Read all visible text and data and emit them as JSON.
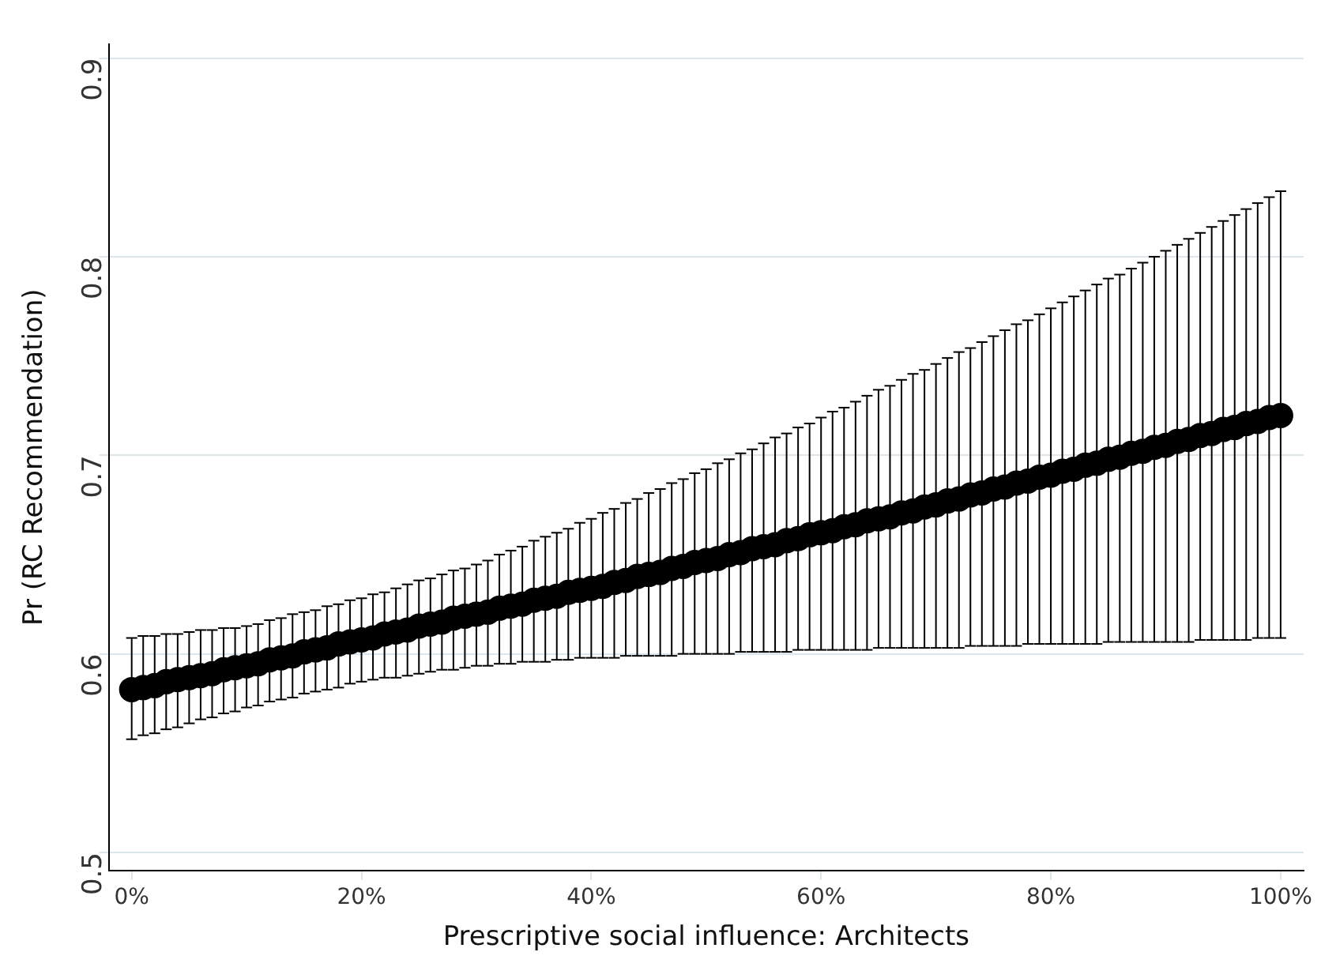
{
  "chart_data": {
    "type": "scatter",
    "xlabel": "Prescriptive social influence: Architects",
    "ylabel": "Pr (RC Recommendation)",
    "x": [
      0,
      1,
      2,
      3,
      4,
      5,
      6,
      7,
      8,
      9,
      10,
      11,
      12,
      13,
      14,
      15,
      16,
      17,
      18,
      19,
      20,
      21,
      22,
      23,
      24,
      25,
      26,
      27,
      28,
      29,
      30,
      31,
      32,
      33,
      34,
      35,
      36,
      37,
      38,
      39,
      40,
      41,
      42,
      43,
      44,
      45,
      46,
      47,
      48,
      49,
      50,
      51,
      52,
      53,
      54,
      55,
      56,
      57,
      58,
      59,
      60,
      61,
      62,
      63,
      64,
      65,
      66,
      67,
      68,
      69,
      70,
      71,
      72,
      73,
      74,
      75,
      76,
      77,
      78,
      79,
      80,
      81,
      82,
      83,
      84,
      85,
      86,
      87,
      88,
      89,
      90,
      91,
      92,
      93,
      94,
      95,
      96,
      97,
      98,
      99,
      100
    ],
    "series": [
      {
        "color": "#000000",
        "values": [
          0.582,
          0.583,
          0.584,
          0.586,
          0.587,
          0.588,
          0.589,
          0.59,
          0.592,
          0.593,
          0.594,
          0.595,
          0.597,
          0.598,
          0.599,
          0.601,
          0.602,
          0.603,
          0.605,
          0.606,
          0.607,
          0.608,
          0.61,
          0.611,
          0.612,
          0.614,
          0.615,
          0.616,
          0.618,
          0.619,
          0.62,
          0.621,
          0.623,
          0.624,
          0.625,
          0.627,
          0.628,
          0.629,
          0.631,
          0.632,
          0.633,
          0.634,
          0.636,
          0.637,
          0.639,
          0.64,
          0.641,
          0.643,
          0.644,
          0.646,
          0.647,
          0.648,
          0.65,
          0.651,
          0.653,
          0.654,
          0.655,
          0.657,
          0.658,
          0.66,
          0.661,
          0.662,
          0.664,
          0.665,
          0.667,
          0.668,
          0.669,
          0.671,
          0.672,
          0.674,
          0.675,
          0.677,
          0.678,
          0.68,
          0.681,
          0.683,
          0.684,
          0.686,
          0.687,
          0.689,
          0.69,
          0.692,
          0.693,
          0.695,
          0.696,
          0.698,
          0.699,
          0.701,
          0.702,
          0.704,
          0.705,
          0.707,
          0.708,
          0.71,
          0.711,
          0.713,
          0.714,
          0.716,
          0.717,
          0.719,
          0.72
        ],
        "errors": [
          [
            0.557,
            0.608
          ],
          [
            0.559,
            0.609
          ],
          [
            0.56,
            0.609
          ],
          [
            0.562,
            0.61
          ],
          [
            0.563,
            0.61
          ],
          [
            0.565,
            0.611
          ],
          [
            0.567,
            0.612
          ],
          [
            0.568,
            0.612
          ],
          [
            0.57,
            0.613
          ],
          [
            0.571,
            0.613
          ],
          [
            0.573,
            0.614
          ],
          [
            0.574,
            0.615
          ],
          [
            0.576,
            0.617
          ],
          [
            0.577,
            0.618
          ],
          [
            0.578,
            0.62
          ],
          [
            0.58,
            0.621
          ],
          [
            0.581,
            0.622
          ],
          [
            0.582,
            0.624
          ],
          [
            0.583,
            0.625
          ],
          [
            0.585,
            0.627
          ],
          [
            0.586,
            0.628
          ],
          [
            0.587,
            0.63
          ],
          [
            0.588,
            0.631
          ],
          [
            0.588,
            0.633
          ],
          [
            0.589,
            0.635
          ],
          [
            0.59,
            0.637
          ],
          [
            0.591,
            0.638
          ],
          [
            0.592,
            0.64
          ],
          [
            0.592,
            0.642
          ],
          [
            0.593,
            0.643
          ],
          [
            0.594,
            0.645
          ],
          [
            0.594,
            0.647
          ],
          [
            0.595,
            0.65
          ],
          [
            0.595,
            0.652
          ],
          [
            0.596,
            0.654
          ],
          [
            0.596,
            0.657
          ],
          [
            0.596,
            0.659
          ],
          [
            0.597,
            0.661
          ],
          [
            0.597,
            0.663
          ],
          [
            0.598,
            0.666
          ],
          [
            0.598,
            0.668
          ],
          [
            0.598,
            0.671
          ],
          [
            0.598,
            0.673
          ],
          [
            0.599,
            0.676
          ],
          [
            0.599,
            0.678
          ],
          [
            0.599,
            0.681
          ],
          [
            0.599,
            0.683
          ],
          [
            0.599,
            0.686
          ],
          [
            0.6,
            0.688
          ],
          [
            0.6,
            0.691
          ],
          [
            0.6,
            0.693
          ],
          [
            0.6,
            0.696
          ],
          [
            0.6,
            0.698
          ],
          [
            0.601,
            0.701
          ],
          [
            0.601,
            0.703
          ],
          [
            0.601,
            0.706
          ],
          [
            0.601,
            0.709
          ],
          [
            0.601,
            0.711
          ],
          [
            0.602,
            0.714
          ],
          [
            0.602,
            0.716
          ],
          [
            0.602,
            0.719
          ],
          [
            0.602,
            0.722
          ],
          [
            0.602,
            0.724
          ],
          [
            0.602,
            0.727
          ],
          [
            0.602,
            0.73
          ],
          [
            0.603,
            0.733
          ],
          [
            0.603,
            0.735
          ],
          [
            0.603,
            0.738
          ],
          [
            0.603,
            0.741
          ],
          [
            0.603,
            0.743
          ],
          [
            0.603,
            0.746
          ],
          [
            0.603,
            0.749
          ],
          [
            0.603,
            0.752
          ],
          [
            0.604,
            0.754
          ],
          [
            0.604,
            0.757
          ],
          [
            0.604,
            0.76
          ],
          [
            0.604,
            0.763
          ],
          [
            0.604,
            0.766
          ],
          [
            0.605,
            0.768
          ],
          [
            0.605,
            0.771
          ],
          [
            0.605,
            0.774
          ],
          [
            0.605,
            0.777
          ],
          [
            0.605,
            0.78
          ],
          [
            0.605,
            0.783
          ],
          [
            0.605,
            0.786
          ],
          [
            0.606,
            0.789
          ],
          [
            0.606,
            0.791
          ],
          [
            0.606,
            0.794
          ],
          [
            0.606,
            0.797
          ],
          [
            0.606,
            0.8
          ],
          [
            0.606,
            0.803
          ],
          [
            0.606,
            0.806
          ],
          [
            0.606,
            0.809
          ],
          [
            0.607,
            0.812
          ],
          [
            0.607,
            0.815
          ],
          [
            0.607,
            0.818
          ],
          [
            0.607,
            0.821
          ],
          [
            0.607,
            0.824
          ],
          [
            0.608,
            0.827
          ],
          [
            0.608,
            0.83
          ],
          [
            0.608,
            0.833
          ]
        ]
      }
    ],
    "xlim": [
      -2,
      102
    ],
    "xticks": [
      {
        "value": 0,
        "label": "0%"
      },
      {
        "value": 20,
        "label": "20%"
      },
      {
        "value": 40,
        "label": "40%"
      },
      {
        "value": 60,
        "label": "60%"
      },
      {
        "value": 80,
        "label": "80%"
      },
      {
        "value": 100,
        "label": "100%"
      }
    ],
    "ylim": [
      0.491,
      0.907
    ],
    "yticks": [
      0.5,
      0.6,
      0.7,
      0.8,
      0.9
    ],
    "grid": "y",
    "legend": false,
    "marker": "circle"
  }
}
